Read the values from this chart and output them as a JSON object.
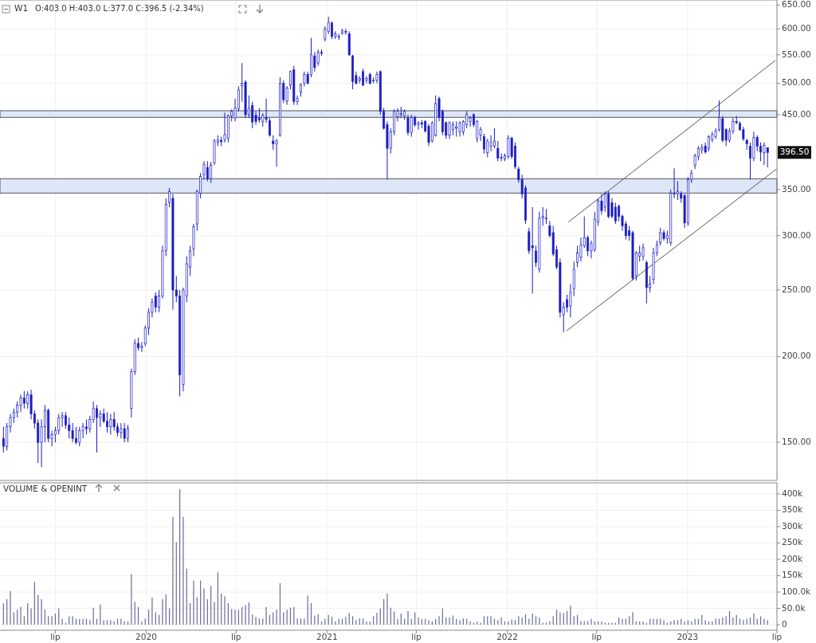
{
  "chart_data": [
    {
      "type": "candlestick",
      "title": "W1",
      "annotations": [
        "O:403.0 H:403.0 L:377.0 C:396.5 (-2.34%)",
        {
          "text": "396.50",
          "y": 396.5
        }
      ],
      "color": "#1c1cc4",
      "log": true,
      "grid": true,
      "tick_labels": "y",
      "xlim": [
        "2019-03-11",
        "2023-07-01"
      ],
      "xticks": [
        "2019-07-01",
        "2020-01-01",
        "2020-07-01",
        "2021-01-01",
        "2021-07-01",
        "2022-01-01",
        "2022-07-01",
        "2023-01-01",
        "2023-07-01"
      ],
      "ylim": [
        132,
        661
      ],
      "yticks": [
        {
          "value": 150,
          "label": "150.00"
        },
        {
          "value": 200,
          "label": "200.00"
        },
        {
          "value": 250,
          "label": "250.00"
        },
        {
          "value": 300,
          "label": "300.00"
        },
        {
          "value": 350,
          "label": "350.00"
        },
        {
          "value": 450,
          "label": "450.00"
        },
        {
          "value": 500,
          "label": "500.00"
        },
        {
          "value": 550,
          "label": "550.00"
        },
        {
          "value": 600,
          "label": "600.00"
        },
        {
          "value": 650,
          "label": "650.00"
        }
      ],
      "bands": [
        {
          "axis": "y",
          "from": 346,
          "to": 363,
          "color": "#dde7f8"
        },
        {
          "axis": "y",
          "from": 446,
          "to": 456,
          "color": "#dde7f8"
        }
      ],
      "x": [
        "2019-03-18",
        "2019-03-25",
        "2019-04-01",
        "2019-04-08",
        "2019-04-15",
        "2019-04-22",
        "2019-04-29",
        "2019-05-06",
        "2019-05-13",
        "2019-05-20",
        "2019-05-27",
        "2019-06-03",
        "2019-06-10",
        "2019-06-17",
        "2019-06-24",
        "2019-07-01",
        "2019-07-08",
        "2019-07-15",
        "2019-07-22",
        "2019-07-29",
        "2019-08-05",
        "2019-08-12",
        "2019-08-19",
        "2019-08-26",
        "2019-09-02",
        "2019-09-09",
        "2019-09-16",
        "2019-09-23",
        "2019-09-30",
        "2019-10-07",
        "2019-10-14",
        "2019-10-21",
        "2019-10-28",
        "2019-11-04",
        "2019-11-11",
        "2019-11-18",
        "2019-11-25",
        "2019-12-02",
        "2019-12-09",
        "2019-12-16",
        "2019-12-23",
        "2019-12-30",
        "2020-01-06",
        "2020-01-13",
        "2020-01-20",
        "2020-01-27",
        "2020-02-03",
        "2020-02-10",
        "2020-02-17",
        "2020-02-24",
        "2020-03-02",
        "2020-03-09",
        "2020-03-16",
        "2020-03-23",
        "2020-03-30",
        "2020-04-06",
        "2020-04-13",
        "2020-04-20",
        "2020-04-27",
        "2020-05-04",
        "2020-05-11",
        "2020-05-18",
        "2020-05-25",
        "2020-06-01",
        "2020-06-08",
        "2020-06-15",
        "2020-06-22",
        "2020-06-29",
        "2020-07-06",
        "2020-07-13",
        "2020-07-20",
        "2020-07-27",
        "2020-08-03",
        "2020-08-10",
        "2020-08-17",
        "2020-08-24",
        "2020-08-31",
        "2020-09-07",
        "2020-09-14",
        "2020-09-21",
        "2020-09-28",
        "2020-10-05",
        "2020-10-12",
        "2020-10-19",
        "2020-10-26",
        "2020-11-02",
        "2020-11-09",
        "2020-11-16",
        "2020-11-23",
        "2020-11-30",
        "2020-12-07",
        "2020-12-14",
        "2020-12-21",
        "2020-12-28",
        "2021-01-04",
        "2021-01-11",
        "2021-01-18",
        "2021-01-25",
        "2021-02-01",
        "2021-02-08",
        "2021-02-15",
        "2021-02-22",
        "2021-03-01",
        "2021-03-08",
        "2021-03-15",
        "2021-03-22",
        "2021-03-29",
        "2021-04-05",
        "2021-04-12",
        "2021-04-19",
        "2021-04-26",
        "2021-05-03",
        "2021-05-10",
        "2021-05-17",
        "2021-05-24",
        "2021-05-31",
        "2021-06-07",
        "2021-06-14",
        "2021-06-21",
        "2021-06-28",
        "2021-07-05",
        "2021-07-12",
        "2021-07-19",
        "2021-07-26",
        "2021-08-02",
        "2021-08-09",
        "2021-08-16",
        "2021-08-23",
        "2021-08-30",
        "2021-09-06",
        "2021-09-13",
        "2021-09-20",
        "2021-09-27",
        "2021-10-04",
        "2021-10-11",
        "2021-10-18",
        "2021-10-25",
        "2021-11-01",
        "2021-11-08",
        "2021-11-15",
        "2021-11-22",
        "2021-11-29",
        "2021-12-06",
        "2021-12-13",
        "2021-12-20",
        "2021-12-27",
        "2022-01-03",
        "2022-01-10",
        "2022-01-17",
        "2022-01-24",
        "2022-01-31",
        "2022-02-07",
        "2022-02-14",
        "2022-02-21",
        "2022-02-28",
        "2022-03-07",
        "2022-03-14",
        "2022-03-21",
        "2022-03-28",
        "2022-04-04",
        "2022-04-11",
        "2022-04-18",
        "2022-04-25",
        "2022-05-02",
        "2022-05-09",
        "2022-05-16",
        "2022-05-23",
        "2022-05-30",
        "2022-06-06",
        "2022-06-13",
        "2022-06-20",
        "2022-06-27",
        "2022-07-04",
        "2022-07-11",
        "2022-07-18",
        "2022-07-25",
        "2022-08-01",
        "2022-08-08",
        "2022-08-15",
        "2022-08-22",
        "2022-08-29",
        "2022-09-05",
        "2022-09-12",
        "2022-09-19",
        "2022-09-26",
        "2022-10-03",
        "2022-10-10",
        "2022-10-17",
        "2022-10-24",
        "2022-10-31",
        "2022-11-07",
        "2022-11-14",
        "2022-11-21",
        "2022-11-28",
        "2022-12-05",
        "2022-12-12",
        "2022-12-19",
        "2022-12-26",
        "2023-01-02",
        "2023-01-09",
        "2023-01-16",
        "2023-01-23",
        "2023-01-30",
        "2023-02-06",
        "2023-02-13",
        "2023-02-20",
        "2023-02-27",
        "2023-03-06",
        "2023-03-13",
        "2023-03-20",
        "2023-03-27",
        "2023-04-03",
        "2023-04-10",
        "2023-04-17",
        "2023-04-24",
        "2023-05-01",
        "2023-05-08",
        "2023-05-15",
        "2023-05-22",
        "2023-05-29",
        "2023-06-05",
        "2023-06-12"
      ],
      "ohlc": [
        [
          152,
          158,
          145,
          148
        ],
        [
          148,
          160,
          146,
          158
        ],
        [
          158,
          165,
          155,
          163
        ],
        [
          163,
          168,
          160,
          166
        ],
        [
          166,
          172,
          163,
          170
        ],
        [
          170,
          176,
          166,
          174
        ],
        [
          174,
          178,
          168,
          171
        ],
        [
          171,
          178,
          168,
          176
        ],
        [
          176,
          179,
          162,
          165
        ],
        [
          165,
          167,
          157,
          160
        ],
        [
          160,
          162,
          140,
          150
        ],
        [
          150,
          162,
          138,
          158
        ],
        [
          158,
          170,
          150,
          167
        ],
        [
          167,
          168,
          150,
          152
        ],
        [
          152,
          156,
          148,
          154
        ],
        [
          154,
          158,
          150,
          156
        ],
        [
          156,
          165,
          154,
          163
        ],
        [
          163,
          166,
          158,
          164
        ],
        [
          164,
          166,
          157,
          159
        ],
        [
          159,
          163,
          152,
          156
        ],
        [
          156,
          160,
          150,
          152
        ],
        [
          152,
          158,
          149,
          150
        ],
        [
          150,
          158,
          148,
          156
        ],
        [
          156,
          160,
          152,
          158
        ],
        [
          158,
          162,
          154,
          157
        ],
        [
          157,
          164,
          155,
          162
        ],
        [
          162,
          172,
          160,
          168
        ],
        [
          168,
          170,
          145,
          163
        ],
        [
          163,
          167,
          158,
          165
        ],
        [
          165,
          168,
          160,
          161
        ],
        [
          161,
          166,
          155,
          158
        ],
        [
          158,
          165,
          154,
          162
        ],
        [
          162,
          166,
          156,
          158
        ],
        [
          158,
          160,
          153,
          155
        ],
        [
          155,
          160,
          152,
          157
        ],
        [
          157,
          160,
          150,
          152
        ],
        [
          152,
          159,
          150,
          157
        ],
        [
          168,
          192,
          163,
          190
        ],
        [
          190,
          212,
          188,
          209
        ],
        [
          209,
          213,
          204,
          206
        ],
        [
          206,
          210,
          203,
          207
        ],
        [
          209,
          222,
          207,
          220
        ],
        [
          220,
          235,
          215,
          232
        ],
        [
          232,
          243,
          228,
          240
        ],
        [
          245,
          248,
          232,
          236
        ],
        [
          236,
          250,
          232,
          245
        ],
        [
          245,
          290,
          243,
          285
        ],
        [
          285,
          340,
          280,
          333
        ],
        [
          335,
          352,
          330,
          348
        ],
        [
          340,
          345,
          234,
          250
        ],
        [
          250,
          262,
          240,
          245
        ],
        [
          245,
          250,
          175,
          188
        ],
        [
          182,
          252,
          178,
          250
        ],
        [
          245,
          280,
          240,
          273
        ],
        [
          270,
          290,
          262,
          285
        ],
        [
          287,
          312,
          280,
          309
        ],
        [
          312,
          350,
          305,
          348
        ],
        [
          346,
          370,
          340,
          366
        ],
        [
          368,
          385,
          362,
          381
        ],
        [
          377,
          385,
          360,
          363
        ],
        [
          363,
          384,
          358,
          380
        ],
        [
          383,
          415,
          380,
          412
        ],
        [
          410,
          420,
          405,
          413
        ],
        [
          413,
          418,
          405,
          411
        ],
        [
          414,
          453,
          410,
          421
        ],
        [
          416,
          450,
          410,
          448
        ],
        [
          448,
          458,
          440,
          455
        ],
        [
          445,
          475,
          440,
          460
        ],
        [
          459,
          495,
          455,
          489
        ],
        [
          496,
          535,
          470,
          500
        ],
        [
          502,
          505,
          445,
          450
        ],
        [
          450,
          480,
          445,
          460
        ],
        [
          464,
          470,
          430,
          439
        ],
        [
          449,
          455,
          435,
          440
        ],
        [
          445,
          460,
          438,
          442
        ],
        [
          440,
          452,
          432,
          449
        ],
        [
          446,
          475,
          438,
          443
        ],
        [
          441,
          445,
          418,
          420
        ],
        [
          412,
          420,
          400,
          408
        ],
        [
          408,
          415,
          378,
          412
        ],
        [
          420,
          510,
          418,
          500
        ],
        [
          500,
          505,
          468,
          473
        ],
        [
          471,
          495,
          465,
          492
        ],
        [
          497,
          522,
          490,
          520
        ],
        [
          523,
          530,
          465,
          470
        ],
        [
          470,
          480,
          465,
          475
        ],
        [
          485,
          500,
          478,
          498
        ],
        [
          500,
          520,
          495,
          515
        ],
        [
          515,
          520,
          498,
          500
        ],
        [
          515,
          582,
          510,
          550
        ],
        [
          548,
          555,
          520,
          527
        ],
        [
          535,
          560,
          530,
          555
        ],
        [
          555,
          560,
          548,
          553
        ],
        [
          580,
          605,
          575,
          600
        ],
        [
          595,
          625,
          590,
          613
        ],
        [
          612,
          615,
          580,
          585
        ],
        [
          585,
          595,
          580,
          590
        ],
        [
          585,
          590,
          578,
          585
        ],
        [
          592,
          600,
          588,
          597
        ],
        [
          595,
          600,
          588,
          593
        ],
        [
          590,
          595,
          548,
          550
        ],
        [
          548,
          550,
          490,
          503
        ],
        [
          513,
          520,
          498,
          500
        ],
        [
          505,
          512,
          500,
          508
        ],
        [
          520,
          525,
          495,
          497
        ],
        [
          505,
          512,
          500,
          508
        ],
        [
          515,
          518,
          498,
          500
        ],
        [
          505,
          510,
          500,
          505
        ],
        [
          505,
          520,
          500,
          515
        ],
        [
          520,
          522,
          450,
          455
        ],
        [
          455,
          460,
          428,
          430
        ],
        [
          435,
          440,
          362,
          402
        ],
        [
          402,
          430,
          395,
          425
        ],
        [
          425,
          458,
          420,
          455
        ],
        [
          447,
          460,
          440,
          455
        ],
        [
          450,
          462,
          445,
          452
        ],
        [
          448,
          458,
          442,
          455
        ],
        [
          445,
          450,
          420,
          424
        ],
        [
          424,
          450,
          418,
          446
        ],
        [
          446,
          448,
          432,
          435
        ],
        [
          435,
          440,
          428,
          438
        ],
        [
          438,
          442,
          430,
          436
        ],
        [
          440,
          442,
          424,
          426
        ],
        [
          433,
          436,
          405,
          410
        ],
        [
          412,
          440,
          410,
          438
        ],
        [
          420,
          480,
          418,
          467
        ],
        [
          475,
          478,
          440,
          446
        ],
        [
          455,
          458,
          420,
          425
        ],
        [
          438,
          440,
          415,
          420
        ],
        [
          420,
          440,
          415,
          438
        ],
        [
          428,
          440,
          420,
          435
        ],
        [
          430,
          440,
          418,
          432
        ],
        [
          425,
          440,
          418,
          438
        ],
        [
          425,
          442,
          420,
          440
        ],
        [
          435,
          455,
          430,
          450
        ],
        [
          440,
          448,
          432,
          445
        ],
        [
          450,
          452,
          432,
          435
        ],
        [
          415,
          442,
          410,
          440
        ],
        [
          420,
          432,
          412,
          428
        ],
        [
          418,
          422,
          395,
          401
        ],
        [
          396,
          415,
          390,
          412
        ],
        [
          405,
          420,
          398,
          410
        ],
        [
          405,
          430,
          402,
          412
        ],
        [
          402,
          412,
          385,
          389
        ],
        [
          390,
          395,
          385,
          390
        ],
        [
          388,
          395,
          385,
          392
        ],
        [
          391,
          420,
          388,
          416
        ],
        [
          416,
          418,
          388,
          391
        ],
        [
          405,
          410,
          375,
          378
        ],
        [
          375,
          378,
          358,
          362
        ],
        [
          362,
          368,
          340,
          345
        ],
        [
          352,
          355,
          312,
          316
        ],
        [
          304,
          308,
          282,
          285
        ],
        [
          290,
          330,
          247,
          288
        ],
        [
          285,
          290,
          270,
          274
        ],
        [
          268,
          325,
          265,
          318
        ],
        [
          318,
          330,
          310,
          320
        ],
        [
          318,
          328,
          312,
          318
        ],
        [
          310,
          315,
          298,
          300
        ],
        [
          303,
          310,
          280,
          282
        ],
        [
          286,
          290,
          268,
          270
        ],
        [
          274,
          278,
          228,
          232
        ],
        [
          230,
          240,
          217,
          236
        ],
        [
          242,
          246,
          232,
          236
        ],
        [
          237,
          255,
          228,
          248
        ],
        [
          251,
          275,
          245,
          268
        ],
        [
          274,
          290,
          270,
          283
        ],
        [
          279,
          298,
          275,
          291
        ],
        [
          290,
          320,
          288,
          298
        ],
        [
          298,
          300,
          280,
          285
        ],
        [
          285,
          295,
          278,
          292
        ],
        [
          286,
          325,
          284,
          317
        ],
        [
          314,
          340,
          310,
          337
        ],
        [
          337,
          345,
          322,
          326
        ],
        [
          330,
          348,
          325,
          345
        ],
        [
          345,
          348,
          318,
          320
        ],
        [
          335,
          340,
          318,
          320
        ],
        [
          330,
          335,
          312,
          315
        ],
        [
          331,
          333,
          315,
          320
        ],
        [
          320,
          322,
          305,
          310
        ],
        [
          312,
          315,
          296,
          300
        ],
        [
          305,
          310,
          295,
          300
        ],
        [
          303,
          305,
          258,
          260
        ],
        [
          262,
          285,
          258,
          283
        ],
        [
          280,
          290,
          275,
          283
        ],
        [
          280,
          292,
          276,
          288
        ],
        [
          274,
          276,
          239,
          252
        ],
        [
          252,
          262,
          248,
          255
        ],
        [
          259,
          288,
          255,
          283
        ],
        [
          283,
          295,
          280,
          291
        ],
        [
          293,
          308,
          290,
          303
        ],
        [
          303,
          306,
          295,
          297
        ],
        [
          297,
          305,
          292,
          300
        ],
        [
          293,
          350,
          290,
          346
        ],
        [
          346,
          376,
          340,
          345
        ],
        [
          345,
          360,
          338,
          348
        ],
        [
          345,
          348,
          335,
          340
        ],
        [
          343,
          345,
          308,
          313
        ],
        [
          313,
          365,
          310,
          362
        ],
        [
          362,
          374,
          358,
          370
        ],
        [
          380,
          395,
          375,
          392
        ],
        [
          391,
          405,
          386,
          402
        ],
        [
          400,
          408,
          395,
          403
        ],
        [
          405,
          410,
          395,
          397
        ],
        [
          402,
          420,
          398,
          418
        ],
        [
          414,
          425,
          410,
          421
        ],
        [
          418,
          430,
          415,
          426
        ],
        [
          428,
          472,
          425,
          446
        ],
        [
          444,
          448,
          410,
          413
        ],
        [
          428,
          430,
          405,
          413
        ],
        [
          413,
          430,
          410,
          426
        ],
        [
          426,
          445,
          422,
          440
        ],
        [
          440,
          448,
          436,
          438
        ],
        [
          437,
          440,
          426,
          428
        ],
        [
          428,
          432,
          412,
          415
        ],
        [
          413,
          415,
          400,
          408
        ],
        [
          405,
          410,
          362,
          389
        ],
        [
          389,
          425,
          385,
          417
        ],
        [
          417,
          420,
          398,
          405
        ],
        [
          405,
          410,
          385,
          397
        ],
        [
          396,
          410,
          380,
          406
        ],
        [
          403,
          403,
          377,
          396.5
        ]
      ],
      "series": [
        {
          "type": "line",
          "color": "#555555",
          "x": [
            "2022-05-05",
            "2023-06-28"
          ],
          "values": [
            314,
            540
          ]
        },
        {
          "type": "line",
          "color": "#555555",
          "x": [
            "2022-05-01",
            "2023-06-30"
          ],
          "values": [
            218,
            375
          ]
        }
      ]
    },
    {
      "type": "bar",
      "title": "VOLUME & OPENINT",
      "color": "#6b6b9e",
      "grid": true,
      "xlim": [
        "2019-03-11",
        "2023-07-01"
      ],
      "xticks": [
        {
          "value": "2019-07-01",
          "label": "lip"
        },
        {
          "value": "2020-01-01",
          "label": "2020"
        },
        {
          "value": "2020-07-01",
          "label": "lip"
        },
        {
          "value": "2021-01-01",
          "label": "2021"
        },
        {
          "value": "2021-07-01",
          "label": "lip"
        },
        {
          "value": "2022-01-01",
          "label": "2022"
        },
        {
          "value": "2022-07-01",
          "label": "lip"
        },
        {
          "value": "2023-01-01",
          "label": "2023"
        },
        {
          "value": "2023-07-01",
          "label": "lip"
        }
      ],
      "ylim": [
        -17000,
        434000
      ],
      "yticks": [
        {
          "value": 0,
          "label": "0"
        },
        {
          "value": 50000,
          "label": "50.0k"
        },
        {
          "value": 100000,
          "label": "100.0k"
        },
        {
          "value": 150000,
          "label": "150k"
        },
        {
          "value": 200000,
          "label": "200k"
        },
        {
          "value": 250000,
          "label": "250k"
        },
        {
          "value": 300000,
          "label": "300k"
        },
        {
          "value": 350000,
          "label": "350k"
        },
        {
          "value": 400000,
          "label": "400k"
        }
      ],
      "x": [
        "2019-03-18",
        "2019-03-25",
        "2019-04-01",
        "2019-04-08",
        "2019-04-15",
        "2019-04-22",
        "2019-04-29",
        "2019-05-06",
        "2019-05-13",
        "2019-05-20",
        "2019-05-27",
        "2019-06-03",
        "2019-06-10",
        "2019-06-17",
        "2019-06-24",
        "2019-07-01",
        "2019-07-08",
        "2019-07-15",
        "2019-07-22",
        "2019-07-29",
        "2019-08-05",
        "2019-08-12",
        "2019-08-19",
        "2019-08-26",
        "2019-09-02",
        "2019-09-09",
        "2019-09-16",
        "2019-09-23",
        "2019-09-30",
        "2019-10-07",
        "2019-10-14",
        "2019-10-21",
        "2019-10-28",
        "2019-11-04",
        "2019-11-11",
        "2019-11-18",
        "2019-11-25",
        "2019-12-02",
        "2019-12-09",
        "2019-12-16",
        "2019-12-23",
        "2019-12-30",
        "2020-01-06",
        "2020-01-13",
        "2020-01-20",
        "2020-01-27",
        "2020-02-03",
        "2020-02-10",
        "2020-02-17",
        "2020-02-24",
        "2020-03-02",
        "2020-03-09",
        "2020-03-16",
        "2020-03-23",
        "2020-03-30",
        "2020-04-06",
        "2020-04-13",
        "2020-04-20",
        "2020-04-27",
        "2020-05-04",
        "2020-05-11",
        "2020-05-18",
        "2020-05-25",
        "2020-06-01",
        "2020-06-08",
        "2020-06-15",
        "2020-06-22",
        "2020-06-29",
        "2020-07-06",
        "2020-07-13",
        "2020-07-20",
        "2020-07-27",
        "2020-08-03",
        "2020-08-10",
        "2020-08-17",
        "2020-08-24",
        "2020-08-31",
        "2020-09-07",
        "2020-09-14",
        "2020-09-21",
        "2020-09-28",
        "2020-10-05",
        "2020-10-12",
        "2020-10-19",
        "2020-10-26",
        "2020-11-02",
        "2020-11-09",
        "2020-11-16",
        "2020-11-23",
        "2020-11-30",
        "2020-12-07",
        "2020-12-14",
        "2020-12-21",
        "2020-12-28",
        "2021-01-04",
        "2021-01-11",
        "2021-01-18",
        "2021-01-25",
        "2021-02-01",
        "2021-02-08",
        "2021-02-15",
        "2021-02-22",
        "2021-03-01",
        "2021-03-08",
        "2021-03-15",
        "2021-03-22",
        "2021-03-29",
        "2021-04-05",
        "2021-04-12",
        "2021-04-19",
        "2021-04-26",
        "2021-05-03",
        "2021-05-10",
        "2021-05-17",
        "2021-05-24",
        "2021-05-31",
        "2021-06-07",
        "2021-06-14",
        "2021-06-21",
        "2021-06-28",
        "2021-07-05",
        "2021-07-12",
        "2021-07-19",
        "2021-07-26",
        "2021-08-02",
        "2021-08-09",
        "2021-08-16",
        "2021-08-23",
        "2021-08-30",
        "2021-09-06",
        "2021-09-13",
        "2021-09-20",
        "2021-09-27",
        "2021-10-04",
        "2021-10-11",
        "2021-10-18",
        "2021-10-25",
        "2021-11-01",
        "2021-11-08",
        "2021-11-15",
        "2021-11-22",
        "2021-11-29",
        "2021-12-06",
        "2021-12-13",
        "2021-12-20",
        "2021-12-27",
        "2022-01-03",
        "2022-01-10",
        "2022-01-17",
        "2022-01-24",
        "2022-01-31",
        "2022-02-07",
        "2022-02-14",
        "2022-02-21",
        "2022-02-28",
        "2022-03-07",
        "2022-03-14",
        "2022-03-21",
        "2022-03-28",
        "2022-04-04",
        "2022-04-11",
        "2022-04-18",
        "2022-04-25",
        "2022-05-02",
        "2022-05-09",
        "2022-05-16",
        "2022-05-23",
        "2022-05-30",
        "2022-06-06",
        "2022-06-13",
        "2022-06-20",
        "2022-06-27",
        "2022-07-04",
        "2022-07-11",
        "2022-07-18",
        "2022-07-25",
        "2022-08-01",
        "2022-08-08",
        "2022-08-15",
        "2022-08-22",
        "2022-08-29",
        "2022-09-05",
        "2022-09-12",
        "2022-09-19",
        "2022-09-26",
        "2022-10-03",
        "2022-10-10",
        "2022-10-17",
        "2022-10-24",
        "2022-10-31",
        "2022-11-07",
        "2022-11-14",
        "2022-11-21",
        "2022-11-28",
        "2022-12-05",
        "2022-12-12",
        "2022-12-19",
        "2022-12-26",
        "2023-01-02",
        "2023-01-09",
        "2023-01-16",
        "2023-01-23",
        "2023-01-30",
        "2023-02-06",
        "2023-02-13",
        "2023-02-20",
        "2023-02-27",
        "2023-03-06",
        "2023-03-13",
        "2023-03-20",
        "2023-03-27",
        "2023-04-03",
        "2023-04-10",
        "2023-04-17",
        "2023-04-24",
        "2023-05-01",
        "2023-05-08",
        "2023-05-15",
        "2023-05-22",
        "2023-05-29",
        "2023-06-05",
        "2023-06-12"
      ],
      "values": [
        66000,
        78000,
        103000,
        38000,
        46000,
        54000,
        26000,
        66000,
        50000,
        131000,
        91000,
        78000,
        46000,
        26000,
        26000,
        34000,
        50000,
        18000,
        6000,
        26000,
        26000,
        18000,
        18000,
        18000,
        18000,
        14000,
        52000,
        18000,
        62000,
        14000,
        14000,
        14000,
        10000,
        18000,
        18000,
        11000,
        10000,
        155000,
        70000,
        54000,
        10000,
        19000,
        46000,
        83000,
        38000,
        30000,
        78000,
        93000,
        50000,
        330000,
        253000,
        415000,
        330000,
        172000,
        66000,
        135000,
        84000,
        135000,
        111000,
        78000,
        119000,
        70000,
        160000,
        95000,
        87000,
        66000,
        48000,
        46000,
        46000,
        54000,
        60000,
        68000,
        32000,
        24000,
        19000,
        19000,
        54000,
        30000,
        38000,
        46000,
        127000,
        38000,
        46000,
        52000,
        54000,
        19000,
        19000,
        19000,
        89000,
        66000,
        28000,
        32000,
        10000,
        18000,
        30000,
        24000,
        10000,
        18000,
        18000,
        24000,
        36000,
        26000,
        14000,
        19000,
        19000,
        10000,
        10000,
        26000,
        36000,
        50000,
        78000,
        95000,
        52000,
        40000,
        18000,
        34000,
        18000,
        42000,
        18000,
        38000,
        22000,
        18000,
        18000,
        14000,
        10000,
        18000,
        26000,
        50000,
        22000,
        22000,
        28000,
        18000,
        14000,
        19000,
        18000,
        10000,
        6000,
        10000,
        6000,
        26000,
        26000,
        26000,
        18000,
        14000,
        22000,
        10000,
        10000,
        16000,
        14000,
        26000,
        22000,
        32000,
        18000,
        34000,
        26000,
        22000,
        6000,
        6000,
        10000,
        26000,
        46000,
        38000,
        36000,
        42000,
        58000,
        26000,
        30000,
        11000,
        11000,
        11000,
        18000,
        10000,
        10000,
        10000,
        6000,
        6000,
        6000,
        6000,
        22000,
        18000,
        18000,
        26000,
        38000,
        10000,
        10000,
        10000,
        6000,
        18000,
        18000,
        18000,
        18000,
        14000,
        6000,
        10000,
        14000,
        14000,
        18000,
        10000,
        14000,
        10000,
        18000,
        18000,
        30000,
        14000,
        10000,
        10000,
        18000,
        18000,
        22000,
        26000,
        42000,
        22000,
        30000,
        18000,
        14000,
        18000,
        22000,
        34000,
        18000,
        26000,
        18000,
        14000
      ]
    }
  ]
}
